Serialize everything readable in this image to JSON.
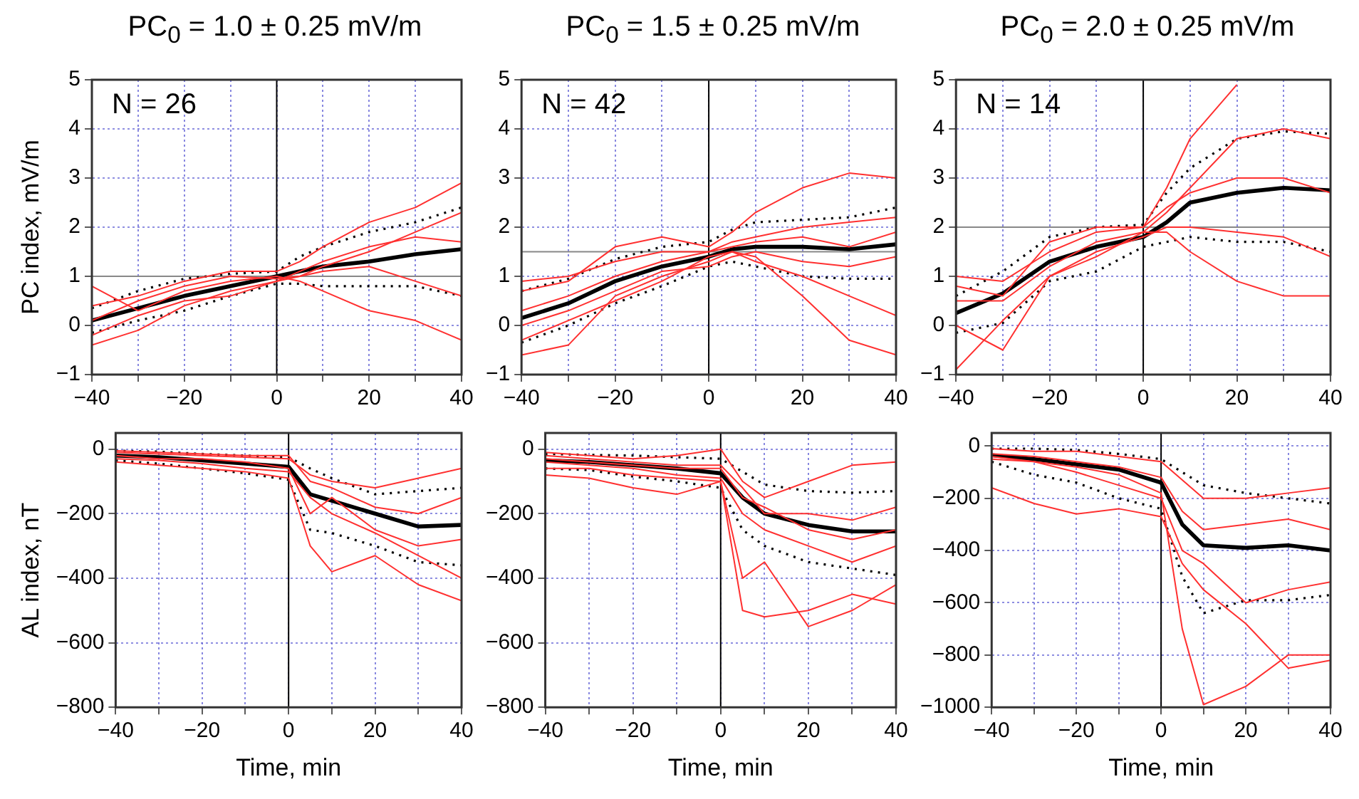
{
  "chart_data": [
    {
      "type": "line",
      "title": "PC$_{0}$ = 1.0 ± 0.25 mV/m",
      "ylabel": "PC index, mV/m",
      "x": [
        -40,
        -30,
        -20,
        -10,
        0,
        5,
        10,
        20,
        30,
        40
      ],
      "xlim": [
        -40,
        40
      ],
      "xticks": [
        -40,
        {
          "value": -30,
          "label": null
        },
        -20,
        {
          "value": -10,
          "label": null
        },
        0,
        {
          "value": 10,
          "label": null
        },
        20,
        {
          "value": 30,
          "label": null
        },
        40
      ],
      "ylim": [
        -1,
        5
      ],
      "yticks": [
        -1,
        0,
        1,
        2,
        3,
        4,
        5
      ],
      "grid": true,
      "legend": false,
      "marker": "none",
      "annotations": [
        "N = 26"
      ],
      "ref_lines": [
        {
          "axis": "y",
          "value": 1,
          "color": "#888888"
        },
        {
          "axis": "x",
          "value": 0,
          "color": "#000000"
        }
      ],
      "series": [
        {
          "color": "#ff3030",
          "line_style": "solid",
          "values": [
            0.4,
            0.6,
            0.9,
            1.1,
            1.1,
            1.3,
            1.6,
            2.1,
            2.4,
            2.9
          ]
        },
        {
          "color": "#ff3030",
          "line_style": "solid",
          "values": [
            -0.4,
            -0.1,
            0.4,
            0.7,
            0.9,
            1.0,
            1.2,
            1.5,
            1.9,
            2.3
          ]
        },
        {
          "color": "#ff3030",
          "line_style": "solid",
          "values": [
            0.8,
            0.3,
            0.7,
            0.9,
            1.0,
            0.9,
            0.7,
            0.3,
            0.1,
            -0.3
          ]
        },
        {
          "color": "#ff3030",
          "line_style": "solid",
          "values": [
            0.1,
            0.5,
            0.8,
            1.0,
            0.95,
            1.0,
            1.1,
            1.2,
            0.9,
            0.6
          ]
        },
        {
          "color": "#ff3030",
          "line_style": "solid",
          "values": [
            -0.2,
            0.2,
            0.5,
            0.6,
            0.9,
            1.1,
            1.3,
            1.6,
            1.8,
            1.7
          ]
        },
        {
          "color": "#000000",
          "line_style": "dotted",
          "values": [
            0.35,
            0.7,
            0.95,
            1.05,
            1.1,
            1.4,
            1.6,
            1.9,
            2.1,
            2.4
          ]
        },
        {
          "color": "#000000",
          "line_style": "dotted",
          "values": [
            -0.15,
            0.1,
            0.3,
            0.6,
            0.85,
            0.85,
            0.8,
            0.8,
            0.8,
            0.6
          ]
        },
        {
          "color": "#000000",
          "line_style": "solid",
          "values": [
            0.1,
            0.35,
            0.6,
            0.8,
            1.0,
            1.1,
            1.2,
            1.3,
            1.45,
            1.55
          ]
        }
      ]
    },
    {
      "type": "line",
      "title": "PC$_{0}$ = 1.5 ± 0.25 mV/m",
      "x": [
        -40,
        -30,
        -20,
        -10,
        0,
        5,
        10,
        20,
        30,
        40
      ],
      "xlim": [
        -40,
        40
      ],
      "xticks": [
        -40,
        {
          "value": -30,
          "label": null
        },
        -20,
        {
          "value": -10,
          "label": null
        },
        0,
        {
          "value": 10,
          "label": null
        },
        20,
        {
          "value": 30,
          "label": null
        },
        40
      ],
      "ylim": [
        -1,
        5
      ],
      "yticks": [
        -1,
        0,
        1,
        2,
        3,
        4,
        5
      ],
      "grid": true,
      "legend": false,
      "marker": "none",
      "annotations": [
        "N = 42"
      ],
      "ref_lines": [
        {
          "axis": "y",
          "value": 1.5,
          "color": "#888888"
        },
        {
          "axis": "x",
          "value": 0,
          "color": "#000000"
        }
      ],
      "series": [
        {
          "color": "#ff3030",
          "line_style": "solid",
          "values": [
            0.7,
            0.9,
            1.6,
            1.8,
            1.6,
            1.9,
            2.3,
            2.8,
            3.1,
            3.0
          ]
        },
        {
          "color": "#ff3030",
          "line_style": "solid",
          "values": [
            -0.6,
            -0.4,
            0.6,
            1.0,
            1.3,
            1.5,
            1.4,
            0.6,
            -0.3,
            -0.6
          ]
        },
        {
          "color": "#ff3030",
          "line_style": "solid",
          "values": [
            0.3,
            0.6,
            1.0,
            1.3,
            1.5,
            1.7,
            1.8,
            2.0,
            2.1,
            2.2
          ]
        },
        {
          "color": "#ff3030",
          "line_style": "solid",
          "values": [
            0.0,
            0.3,
            0.7,
            1.1,
            1.2,
            1.4,
            1.5,
            1.3,
            1.2,
            1.4
          ]
        },
        {
          "color": "#ff3030",
          "line_style": "solid",
          "values": [
            0.9,
            1.0,
            1.3,
            1.5,
            1.5,
            1.6,
            1.7,
            1.8,
            1.6,
            1.9
          ]
        },
        {
          "color": "#ff3030",
          "line_style": "solid",
          "values": [
            -0.3,
            0.1,
            0.5,
            0.9,
            1.4,
            1.5,
            1.3,
            1.0,
            0.6,
            0.2
          ]
        },
        {
          "color": "#000000",
          "line_style": "dotted",
          "values": [
            0.7,
            0.95,
            1.35,
            1.6,
            1.7,
            1.95,
            2.1,
            2.15,
            2.2,
            2.4
          ]
        },
        {
          "color": "#000000",
          "line_style": "dotted",
          "values": [
            -0.35,
            0.0,
            0.45,
            0.8,
            1.2,
            1.3,
            1.2,
            1.0,
            0.95,
            0.95
          ]
        },
        {
          "color": "#000000",
          "line_style": "solid",
          "values": [
            0.15,
            0.45,
            0.9,
            1.2,
            1.4,
            1.55,
            1.6,
            1.6,
            1.55,
            1.65
          ]
        }
      ]
    },
    {
      "type": "line",
      "title": "PC$_{0}$ = 2.0 ± 0.25 mV/m",
      "x": [
        -40,
        -30,
        -20,
        -10,
        0,
        5,
        10,
        20,
        30,
        40
      ],
      "xlim": [
        -40,
        40
      ],
      "xticks": [
        -40,
        {
          "value": -30,
          "label": null
        },
        -20,
        {
          "value": -10,
          "label": null
        },
        0,
        {
          "value": 10,
          "label": null
        },
        20,
        {
          "value": 30,
          "label": null
        },
        40
      ],
      "ylim": [
        -1,
        5
      ],
      "yticks": [
        -1,
        0,
        1,
        2,
        3,
        4,
        5
      ],
      "grid": true,
      "legend": false,
      "marker": "none",
      "annotations": [
        "N = 14"
      ],
      "ref_lines": [
        {
          "axis": "y",
          "value": 2,
          "color": "#888888"
        },
        {
          "axis": "x",
          "value": 0,
          "color": "#000000"
        }
      ],
      "series": [
        {
          "color": "#ff3030",
          "line_style": "solid",
          "values": [
            1.0,
            0.9,
            1.5,
            1.9,
            2.0,
            2.8,
            3.8,
            4.9,
            null,
            null
          ]
        },
        {
          "color": "#ff3030",
          "line_style": "solid",
          "values": [
            -0.9,
            0.1,
            1.0,
            1.4,
            1.9,
            2.3,
            2.8,
            3.8,
            4.0,
            3.8
          ]
        },
        {
          "color": "#ff3030",
          "line_style": "solid",
          "values": [
            0.5,
            0.5,
            1.2,
            1.7,
            1.9,
            1.9,
            1.5,
            0.9,
            0.6,
            0.6
          ]
        },
        {
          "color": "#ff3030",
          "line_style": "solid",
          "values": [
            0.0,
            -0.5,
            1.0,
            1.5,
            1.8,
            2.0,
            2.0,
            1.9,
            1.8,
            1.4
          ]
        },
        {
          "color": "#ff3030",
          "line_style": "solid",
          "values": [
            0.8,
            0.6,
            1.7,
            2.0,
            2.0,
            2.4,
            2.7,
            3.0,
            3.0,
            2.7
          ]
        },
        {
          "color": "#000000",
          "line_style": "dotted",
          "values": [
            0.6,
            1.1,
            1.8,
            2.0,
            2.05,
            2.7,
            3.2,
            3.8,
            3.95,
            3.9
          ]
        },
        {
          "color": "#000000",
          "line_style": "dotted",
          "values": [
            -0.15,
            0.05,
            0.9,
            1.1,
            1.6,
            1.7,
            1.8,
            1.7,
            1.7,
            1.5
          ]
        },
        {
          "color": "#000000",
          "line_style": "solid",
          "values": [
            0.25,
            0.65,
            1.3,
            1.6,
            1.8,
            2.1,
            2.5,
            2.7,
            2.8,
            2.75
          ]
        }
      ]
    },
    {
      "type": "line",
      "xlabel": "Time, min",
      "ylabel": "AL index, nT",
      "x": [
        -40,
        -30,
        -20,
        -10,
        0,
        5,
        10,
        20,
        30,
        40
      ],
      "xlim": [
        -40,
        40
      ],
      "xticks": [
        -40,
        {
          "value": -30,
          "label": null
        },
        -20,
        {
          "value": -10,
          "label": null
        },
        0,
        {
          "value": 10,
          "label": null
        },
        20,
        {
          "value": 30,
          "label": null
        },
        40
      ],
      "ylim": [
        -800,
        50
      ],
      "yticks": [
        -800,
        -600,
        -400,
        -200,
        0
      ],
      "grid": true,
      "legend": false,
      "marker": "none",
      "ref_lines": [
        {
          "axis": "x",
          "value": 0,
          "color": "#000000"
        }
      ],
      "series": [
        {
          "color": "#ff3030",
          "line_style": "solid",
          "values": [
            -10,
            -15,
            -20,
            -25,
            -30,
            -80,
            -100,
            -120,
            -90,
            -60
          ]
        },
        {
          "color": "#ff3030",
          "line_style": "solid",
          "values": [
            -40,
            -50,
            -60,
            -70,
            -90,
            -300,
            -380,
            -330,
            -420,
            -470
          ]
        },
        {
          "color": "#ff3030",
          "line_style": "solid",
          "values": [
            -20,
            -30,
            -30,
            -40,
            -60,
            -200,
            -150,
            -250,
            -300,
            -280
          ]
        },
        {
          "color": "#ff3030",
          "line_style": "solid",
          "values": [
            -5,
            -10,
            -15,
            -20,
            -20,
            -100,
            -120,
            -180,
            -200,
            -150
          ]
        },
        {
          "color": "#ff3030",
          "line_style": "solid",
          "values": [
            -30,
            -35,
            -45,
            -60,
            -70,
            -150,
            -200,
            -260,
            -330,
            -400
          ]
        },
        {
          "color": "#000000",
          "line_style": "dotted",
          "values": [
            -5,
            -8,
            -15,
            -20,
            -25,
            -60,
            -90,
            -140,
            -130,
            -120
          ]
        },
        {
          "color": "#000000",
          "line_style": "dotted",
          "values": [
            -35,
            -45,
            -60,
            -75,
            -95,
            -250,
            -260,
            -300,
            -350,
            -360
          ]
        },
        {
          "color": "#000000",
          "line_style": "solid",
          "values": [
            -20,
            -25,
            -35,
            -45,
            -55,
            -140,
            -160,
            -200,
            -240,
            -235
          ]
        }
      ]
    },
    {
      "type": "line",
      "xlabel": "Time, min",
      "x": [
        -40,
        -30,
        -20,
        -10,
        0,
        5,
        10,
        20,
        30,
        40
      ],
      "xlim": [
        -40,
        40
      ],
      "xticks": [
        -40,
        {
          "value": -30,
          "label": null
        },
        -20,
        {
          "value": -10,
          "label": null
        },
        0,
        {
          "value": 10,
          "label": null
        },
        20,
        {
          "value": 30,
          "label": null
        },
        40
      ],
      "ylim": [
        -800,
        50
      ],
      "yticks": [
        -800,
        -600,
        -400,
        -200,
        0
      ],
      "grid": true,
      "legend": false,
      "marker": "none",
      "ref_lines": [
        {
          "axis": "x",
          "value": 0,
          "color": "#000000"
        }
      ],
      "series": [
        {
          "color": "#ff3030",
          "line_style": "solid",
          "values": [
            -10,
            -20,
            -30,
            -20,
            0,
            -100,
            -150,
            -100,
            -50,
            -40
          ]
        },
        {
          "color": "#ff3030",
          "line_style": "solid",
          "values": [
            -80,
            -90,
            -120,
            -140,
            -100,
            -500,
            -520,
            -500,
            -450,
            -480
          ]
        },
        {
          "color": "#ff3030",
          "line_style": "solid",
          "values": [
            -40,
            -50,
            -60,
            -80,
            -90,
            -200,
            -250,
            -300,
            -350,
            -300
          ]
        },
        {
          "color": "#ff3030",
          "line_style": "solid",
          "values": [
            -20,
            -30,
            -40,
            -50,
            -50,
            -120,
            -200,
            -200,
            -220,
            -180
          ]
        },
        {
          "color": "#ff3030",
          "line_style": "solid",
          "values": [
            -60,
            -60,
            -80,
            -90,
            -100,
            -400,
            -350,
            -550,
            -500,
            -420
          ]
        },
        {
          "color": "#ff3030",
          "line_style": "solid",
          "values": [
            -30,
            -40,
            -50,
            -60,
            -60,
            -150,
            -180,
            -250,
            -280,
            -250
          ]
        },
        {
          "color": "#000000",
          "line_style": "dotted",
          "values": [
            -15,
            -18,
            -20,
            -25,
            -30,
            -70,
            -110,
            -130,
            -135,
            -130
          ]
        },
        {
          "color": "#000000",
          "line_style": "dotted",
          "values": [
            -60,
            -65,
            -85,
            -100,
            -120,
            -250,
            -300,
            -350,
            -370,
            -390
          ]
        },
        {
          "color": "#000000",
          "line_style": "solid",
          "values": [
            -35,
            -40,
            -50,
            -60,
            -75,
            -150,
            -200,
            -235,
            -255,
            -255
          ]
        }
      ]
    },
    {
      "type": "line",
      "xlabel": "Time, min",
      "x": [
        -40,
        -30,
        -20,
        -10,
        0,
        5,
        10,
        20,
        30,
        40
      ],
      "xlim": [
        -40,
        40
      ],
      "xticks": [
        -40,
        {
          "value": -30,
          "label": null
        },
        -20,
        {
          "value": -10,
          "label": null
        },
        0,
        {
          "value": 10,
          "label": null
        },
        20,
        {
          "value": 30,
          "label": null
        },
        40
      ],
      "ylim": [
        -1000,
        50
      ],
      "yticks": [
        -1000,
        -800,
        -600,
        -400,
        -200,
        0
      ],
      "grid": true,
      "legend": false,
      "marker": "none",
      "ref_lines": [
        {
          "axis": "x",
          "value": 0,
          "color": "#000000"
        }
      ],
      "series": [
        {
          "color": "#ff3030",
          "line_style": "solid",
          "values": [
            -160,
            -220,
            -260,
            -240,
            -270,
            -450,
            -550,
            -680,
            -850,
            -820
          ]
        },
        {
          "color": "#ff3030",
          "line_style": "solid",
          "values": [
            -40,
            -60,
            -80,
            -110,
            -180,
            -700,
            -990,
            -920,
            -800,
            -800
          ]
        },
        {
          "color": "#ff3030",
          "line_style": "solid",
          "values": [
            -10,
            -20,
            -20,
            -40,
            -60,
            -130,
            -200,
            -200,
            -180,
            -160
          ]
        },
        {
          "color": "#ff3030",
          "line_style": "solid",
          "values": [
            -30,
            -40,
            -60,
            -80,
            -120,
            -250,
            -320,
            -300,
            -280,
            -320
          ]
        },
        {
          "color": "#ff3030",
          "line_style": "solid",
          "values": [
            -50,
            -60,
            -100,
            -150,
            -200,
            -400,
            -450,
            -600,
            -550,
            -520
          ]
        },
        {
          "color": "#000000",
          "line_style": "dotted",
          "values": [
            -10,
            -10,
            -15,
            -30,
            -50,
            -100,
            -150,
            -180,
            -200,
            -220
          ]
        },
        {
          "color": "#000000",
          "line_style": "dotted",
          "values": [
            -60,
            -110,
            -140,
            -200,
            -240,
            -500,
            -640,
            -590,
            -590,
            -570
          ]
        },
        {
          "color": "#000000",
          "line_style": "solid",
          "values": [
            -35,
            -50,
            -70,
            -90,
            -140,
            -300,
            -380,
            -390,
            -380,
            -400
          ]
        }
      ]
    }
  ]
}
